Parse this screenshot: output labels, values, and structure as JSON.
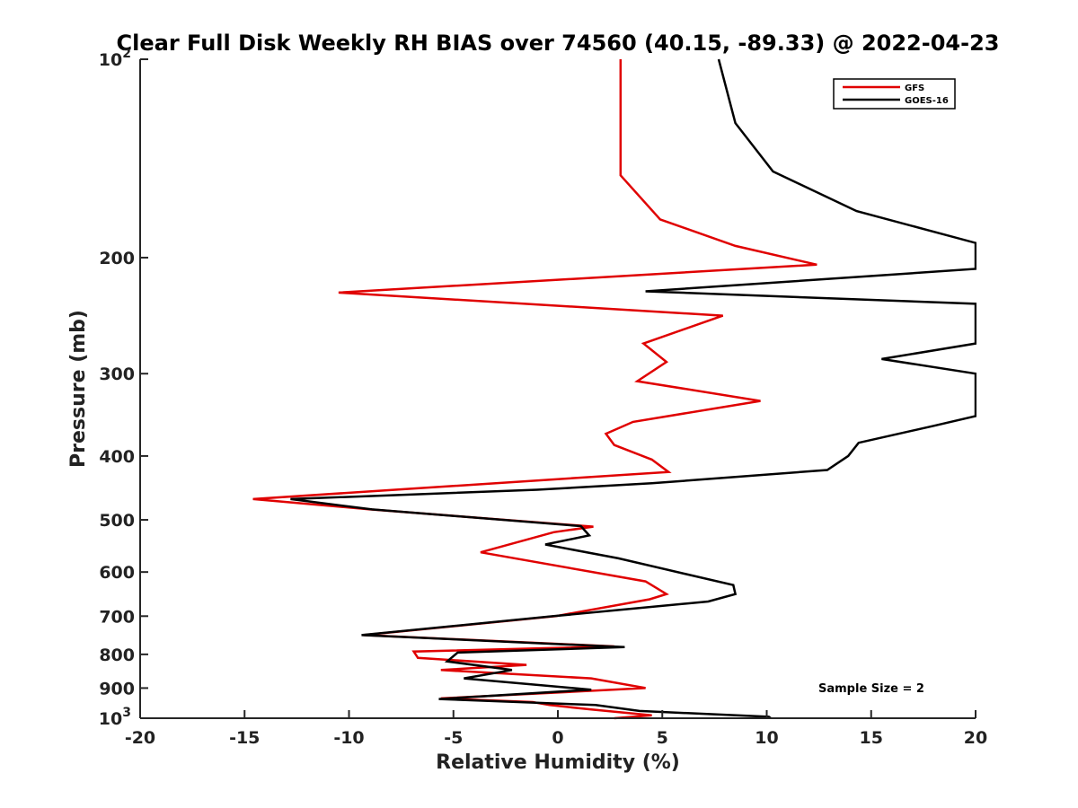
{
  "chart_data": {
    "type": "line",
    "title": "Clear Full Disk Weekly RH BIAS over 74560 (40.15, -89.33) @ 2022-04-23",
    "xlabel": "Relative Humidity (%)",
    "ylabel": "Pressure (mb)",
    "xlim": [
      -20,
      20
    ],
    "ylim": [
      100,
      1000
    ],
    "y_scale": "log",
    "y_reversed": true,
    "grid": false,
    "legend_position": "top-right",
    "x_ticks": [
      "-20",
      "-15",
      "-10",
      "-5",
      "0",
      "5",
      "10",
      "15",
      "20"
    ],
    "x_tick_values": [
      -20,
      -15,
      -10,
      -5,
      0,
      5,
      10,
      15,
      20
    ],
    "y_ticks": [
      {
        "value": 100,
        "base": "10",
        "exp": "2"
      },
      {
        "value": 200,
        "base": "200",
        "exp": ""
      },
      {
        "value": 300,
        "base": "300",
        "exp": ""
      },
      {
        "value": 400,
        "base": "400",
        "exp": ""
      },
      {
        "value": 500,
        "base": "500",
        "exp": ""
      },
      {
        "value": 600,
        "base": "600",
        "exp": ""
      },
      {
        "value": 700,
        "base": "700",
        "exp": ""
      },
      {
        "value": 800,
        "base": "800",
        "exp": ""
      },
      {
        "value": 900,
        "base": "900",
        "exp": ""
      },
      {
        "value": 1000,
        "base": "10",
        "exp": "3"
      }
    ],
    "annotation": "Sample Size = 2",
    "series": [
      {
        "name": "GFS",
        "color": "#e00000",
        "points": [
          [
            3.0,
            100
          ],
          [
            3.0,
            150
          ],
          [
            4.9,
            175
          ],
          [
            8.5,
            192
          ],
          [
            12.4,
            205
          ],
          [
            -10.5,
            226
          ],
          [
            7.9,
            245
          ],
          [
            4.1,
            270
          ],
          [
            5.2,
            288
          ],
          [
            3.8,
            308
          ],
          [
            9.7,
            330
          ],
          [
            3.6,
            355
          ],
          [
            2.3,
            370
          ],
          [
            2.7,
            385
          ],
          [
            4.5,
            405
          ],
          [
            5.3,
            423
          ],
          [
            -6.8,
            448
          ],
          [
            -14.6,
            465
          ],
          [
            -9.0,
            482
          ],
          [
            1.7,
            512
          ],
          [
            -0.2,
            522
          ],
          [
            -3.7,
            560
          ],
          [
            4.2,
            620
          ],
          [
            5.2,
            648
          ],
          [
            4.4,
            660
          ],
          [
            -0.1,
            700
          ],
          [
            -9.3,
            748
          ],
          [
            2.7,
            778
          ],
          [
            -6.9,
            792
          ],
          [
            -6.7,
            810
          ],
          [
            -1.5,
            830
          ],
          [
            -5.6,
            845
          ],
          [
            1.6,
            870
          ],
          [
            4.2,
            900
          ],
          [
            -5.6,
            933
          ],
          [
            -1.2,
            945
          ],
          [
            -0.4,
            955
          ],
          [
            1.6,
            970
          ],
          [
            4.5,
            990
          ],
          [
            2.7,
            1000
          ]
        ]
      },
      {
        "name": "GOES-16",
        "color": "#000000",
        "points": [
          [
            7.7,
            100
          ],
          [
            8.5,
            125
          ],
          [
            10.3,
            148
          ],
          [
            14.3,
            170
          ],
          [
            20.0,
            190
          ],
          [
            20.0,
            208
          ],
          [
            4.2,
            225
          ],
          [
            20.0,
            235
          ],
          [
            20.0,
            255
          ],
          [
            20.0,
            270
          ],
          [
            15.5,
            285
          ],
          [
            20.0,
            300
          ],
          [
            20.0,
            320
          ],
          [
            20.0,
            348
          ],
          [
            18.0,
            360
          ],
          [
            14.4,
            382
          ],
          [
            13.9,
            400
          ],
          [
            12.9,
            420
          ],
          [
            4.5,
            440
          ],
          [
            -1.0,
            450
          ],
          [
            -12.8,
            465
          ],
          [
            -8.9,
            482
          ],
          [
            1.1,
            511
          ],
          [
            1.5,
            528
          ],
          [
            -0.6,
            545
          ],
          [
            2.9,
            572
          ],
          [
            8.4,
            628
          ],
          [
            8.5,
            648
          ],
          [
            7.2,
            665
          ],
          [
            -0.2,
            700
          ],
          [
            -9.4,
            748
          ],
          [
            3.2,
            780
          ],
          [
            -4.8,
            795
          ],
          [
            -5.3,
            820
          ],
          [
            -2.2,
            845
          ],
          [
            -4.5,
            870
          ],
          [
            1.6,
            905
          ],
          [
            -5.7,
            935
          ],
          [
            1.8,
            955
          ],
          [
            3.9,
            975
          ],
          [
            10.1,
            995
          ],
          [
            10.2,
            1000
          ]
        ]
      }
    ]
  }
}
